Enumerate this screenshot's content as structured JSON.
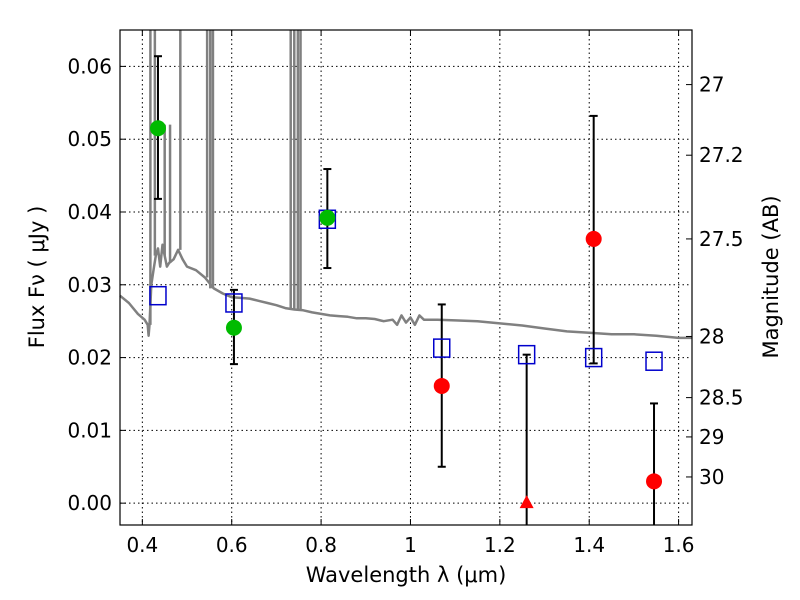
{
  "chart_data": {
    "type": "scatter",
    "xlabel": "Wavelength  λ (μm)",
    "ylabel": "Flux  Fν  ( μJy )",
    "y2label": "Magnitude (AB)",
    "xlim": [
      0.35,
      1.63
    ],
    "ylim": [
      -0.003,
      0.065
    ],
    "grid": true,
    "x_ticks": [
      0.4,
      0.6,
      0.8,
      1.0,
      1.2,
      1.4,
      1.6
    ],
    "x_tick_labels": [
      "0.4",
      "0.6",
      "0.8",
      "1",
      "1.2",
      "1.4",
      "1.6"
    ],
    "y_ticks": [
      0.0,
      0.01,
      0.02,
      0.03,
      0.04,
      0.05,
      0.06
    ],
    "y_tick_labels": [
      "0.00",
      "0.01",
      "0.02",
      "0.03",
      "0.04",
      "0.05",
      "0.06"
    ],
    "y2_ticks": [
      {
        "label": "27",
        "flux": 0.0575
      },
      {
        "label": "27.2",
        "flux": 0.0478
      },
      {
        "label": "27.5",
        "flux": 0.0363
      },
      {
        "label": "28",
        "flux": 0.0229
      },
      {
        "label": "28.5",
        "flux": 0.0145
      },
      {
        "label": "29",
        "flux": 0.0091
      },
      {
        "label": "30",
        "flux": 0.0036
      }
    ],
    "colors": {
      "detections_green": "#00bb00",
      "detections_red": "#ff0000",
      "model_boxes": "#0000cc",
      "spectrum": "#808080",
      "error_bars": "#000000"
    },
    "spectrum": [
      [
        0.35,
        0.0285
      ],
      [
        0.37,
        0.0275
      ],
      [
        0.39,
        0.026
      ],
      [
        0.405,
        0.0252
      ],
      [
        0.412,
        0.0245
      ],
      [
        0.414,
        0.023
      ],
      [
        0.416,
        0.0245
      ],
      [
        0.42,
        0.03
      ],
      [
        0.425,
        0.032
      ],
      [
        0.43,
        0.034
      ],
      [
        0.435,
        0.035
      ],
      [
        0.44,
        0.0325
      ],
      [
        0.445,
        0.0355
      ],
      [
        0.45,
        0.034
      ],
      [
        0.455,
        0.0325
      ],
      [
        0.46,
        0.033
      ],
      [
        0.47,
        0.0335
      ],
      [
        0.48,
        0.0348
      ],
      [
        0.49,
        0.0335
      ],
      [
        0.5,
        0.0325
      ],
      [
        0.52,
        0.032
      ],
      [
        0.54,
        0.031
      ],
      [
        0.56,
        0.0295
      ],
      [
        0.58,
        0.0288
      ],
      [
        0.6,
        0.0283
      ],
      [
        0.62,
        0.0282
      ],
      [
        0.64,
        0.0281
      ],
      [
        0.66,
        0.0278
      ],
      [
        0.68,
        0.0275
      ],
      [
        0.7,
        0.0272
      ],
      [
        0.72,
        0.0268
      ],
      [
        0.74,
        0.0266
      ],
      [
        0.76,
        0.0265
      ],
      [
        0.78,
        0.0262
      ],
      [
        0.8,
        0.026
      ],
      [
        0.82,
        0.0258
      ],
      [
        0.84,
        0.0257
      ],
      [
        0.86,
        0.0256
      ],
      [
        0.88,
        0.0254
      ],
      [
        0.9,
        0.0254
      ],
      [
        0.92,
        0.0253
      ],
      [
        0.94,
        0.025
      ],
      [
        0.96,
        0.0252
      ],
      [
        0.97,
        0.0245
      ],
      [
        0.98,
        0.0258
      ],
      [
        0.99,
        0.0248
      ],
      [
        1.0,
        0.0255
      ],
      [
        1.01,
        0.0245
      ],
      [
        1.02,
        0.0258
      ],
      [
        1.03,
        0.0252
      ],
      [
        1.06,
        0.0252
      ],
      [
        1.1,
        0.0251
      ],
      [
        1.15,
        0.025
      ],
      [
        1.2,
        0.0247
      ],
      [
        1.25,
        0.0244
      ],
      [
        1.3,
        0.024
      ],
      [
        1.35,
        0.0236
      ],
      [
        1.4,
        0.0234
      ],
      [
        1.45,
        0.0232
      ],
      [
        1.5,
        0.0232
      ],
      [
        1.55,
        0.023
      ],
      [
        1.6,
        0.0227
      ],
      [
        1.63,
        0.0227
      ]
    ],
    "spectrum_spikes": [
      {
        "x": 0.418,
        "y": 0.065
      },
      {
        "x": 0.428,
        "y": 0.065
      },
      {
        "x": 0.45,
        "y": 0.052
      },
      {
        "x": 0.462,
        "y": 0.052
      },
      {
        "x": 0.485,
        "y": 0.065
      },
      {
        "x": 0.545,
        "y": 0.065
      },
      {
        "x": 0.552,
        "y": 0.065
      },
      {
        "x": 0.558,
        "y": 0.065
      },
      {
        "x": 0.732,
        "y": 0.065
      },
      {
        "x": 0.74,
        "y": 0.065
      },
      {
        "x": 0.748,
        "y": 0.065
      },
      {
        "x": 0.754,
        "y": 0.065
      }
    ],
    "model_points": [
      {
        "x": 0.435,
        "y": 0.0285
      },
      {
        "x": 0.605,
        "y": 0.0275
      },
      {
        "x": 0.814,
        "y": 0.039
      },
      {
        "x": 1.07,
        "y": 0.0213
      },
      {
        "x": 1.26,
        "y": 0.0204
      },
      {
        "x": 1.41,
        "y": 0.02
      },
      {
        "x": 1.545,
        "y": 0.0195
      }
    ],
    "observed_points": [
      {
        "x": 0.435,
        "y": 0.0515,
        "err_low": 0.0418,
        "err_high": 0.0614,
        "color": "green",
        "marker": "circle"
      },
      {
        "x": 0.605,
        "y": 0.0241,
        "err_low": 0.0191,
        "err_high": 0.0293,
        "color": "green",
        "marker": "circle"
      },
      {
        "x": 0.814,
        "y": 0.0392,
        "err_low": 0.0323,
        "err_high": 0.0459,
        "color": "green",
        "marker": "circle"
      },
      {
        "x": 1.07,
        "y": 0.0161,
        "err_low": 0.005,
        "err_high": 0.0273,
        "color": "red",
        "marker": "circle"
      },
      {
        "x": 1.26,
        "y": 0.0,
        "err_low": -0.003,
        "err_high": 0.0204,
        "color": "red",
        "marker": "triangle"
      },
      {
        "x": 1.41,
        "y": 0.0363,
        "err_low": 0.0192,
        "err_high": 0.0532,
        "color": "red",
        "marker": "circle"
      },
      {
        "x": 1.545,
        "y": 0.003,
        "err_low": -0.003,
        "err_high": 0.0137,
        "color": "red",
        "marker": "circle"
      }
    ]
  }
}
